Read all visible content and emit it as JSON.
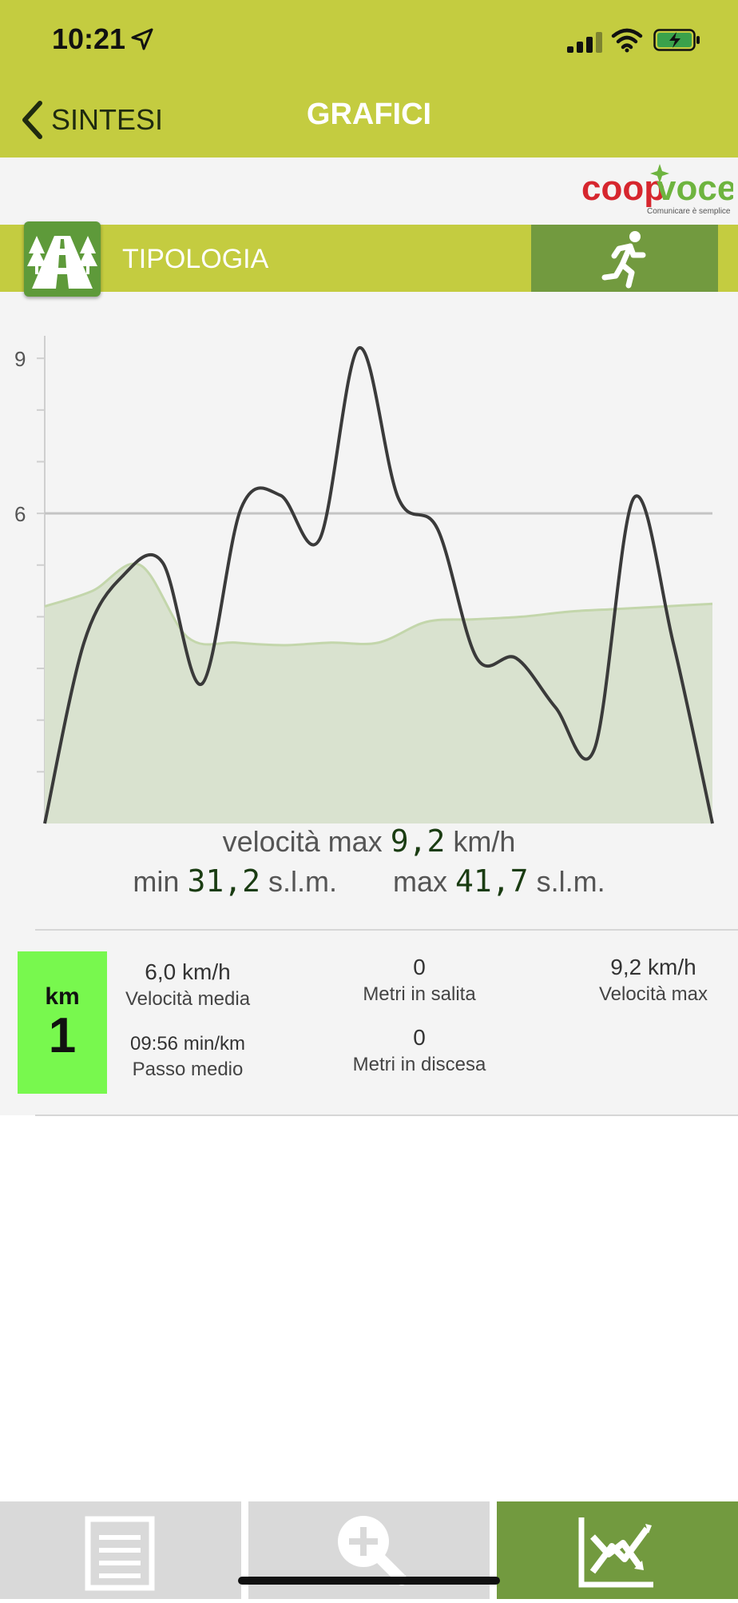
{
  "status_bar": {
    "time": "10:21"
  },
  "nav": {
    "back_label": "SINTESI",
    "title": "GRAFICI"
  },
  "logo": {
    "brand": "coopvoce",
    "tagline": "Comunicare è semplice"
  },
  "type_bar": {
    "label": "TIPOLOGIA",
    "activity_icon": "running-person-icon",
    "type_icon": "forest-road-icon"
  },
  "chart_data": {
    "type": "line",
    "ylim": [
      0,
      9.9
    ],
    "y_ticks": [
      "9",
      "6"
    ],
    "reference_line": 6,
    "series": [
      {
        "values": [
          0,
          3.5,
          4.8,
          5.05,
          2.7,
          6.1,
          6.35,
          5.5,
          9.2,
          6.3,
          5.7,
          3.2,
          3.2,
          2.25,
          1.45,
          6.3,
          3.5,
          0
        ]
      },
      {
        "values": [
          4.2,
          4.5,
          5.0,
          3.6,
          3.5,
          3.45,
          3.5,
          3.5,
          3.9,
          3.95,
          4.0,
          4.1,
          4.15,
          4.2,
          4.25
        ]
      }
    ],
    "colors": {
      "speed": "#3a3a3a",
      "altitude_fill": "#d9e2cf",
      "altitude_line": "#c3d6ab",
      "reference": "#c4c4c4"
    }
  },
  "summary": {
    "speed_label": "velocità max",
    "speed_value": "9,2",
    "speed_unit": "km/h",
    "min_label": "min",
    "min_value": "31,2",
    "min_unit": "s.l.m.",
    "max_label": "max",
    "max_value": "41,7",
    "max_unit": "s.l.m."
  },
  "km_row": {
    "badge_label": "km",
    "badge_number": "1",
    "badge_color": "#78f84e",
    "avg_speed_value": "6,0 km/h",
    "avg_speed_label": "Velocità media",
    "pace_value": "09:56 min/km",
    "pace_label": "Passo medio",
    "ascent_value": "0",
    "ascent_label": "Metri in salita",
    "descent_value": "0",
    "descent_label": "Metri in discesa",
    "max_speed_value": "9,2 km/h",
    "max_speed_label": "Velocità max"
  },
  "tabs": [
    {
      "icon": "list-icon",
      "active": false
    },
    {
      "icon": "zoom-in-icon",
      "active": false
    },
    {
      "icon": "chart-icon",
      "active": true
    }
  ],
  "colors": {
    "accent": "#c4cc40",
    "dark_green": "#729a3f"
  }
}
